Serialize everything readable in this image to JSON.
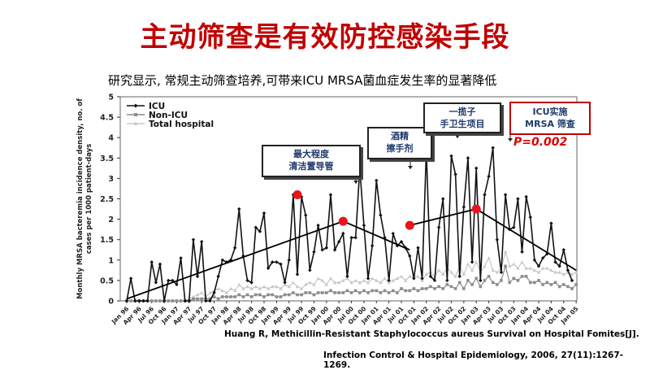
{
  "title": "主动筛查是有效防控感染手段",
  "subtitle": "研究显示, 常规主动筛查培养,可带来ICU MRSA菌血症发生率的显著降低",
  "citation_line1": "Huang R, Methicillin-Resistant Staphylococcus aureus Survival on Hospital Fomites[J].",
  "citation_line2": "Infection Control & Hospital Epidemiology, 2006, 27(11):1267-1269.",
  "callouts": {
    "c1": "最大程度\n清洁置导管",
    "c2": "酒精\n擦手剂",
    "c3": "一揽子\n手卫生项目",
    "c4": "ICU实施\nMRSA 筛查"
  },
  "p_value": "P=0.002",
  "colors": {
    "title": "#c00000",
    "icu": "#111111",
    "non_icu": "#8c8c8c",
    "total": "#c8c8c8",
    "marker": "#e8141b"
  },
  "chart_data": {
    "type": "line",
    "ylabel": "Monthly MRSA bacteremia incidence density, no. of cases per 1000 patient-days",
    "ylim": [
      0,
      5
    ],
    "yticks": [
      0,
      0.5,
      1,
      1.5,
      2,
      2.5,
      3,
      3.5,
      4,
      4.5,
      5
    ],
    "x_tick_labels": [
      "Jan 96",
      "Apr 96",
      "Jul 96",
      "Oct 96",
      "Jan 97",
      "Apr 97",
      "Jul 97",
      "Oct 97",
      "Jan 98",
      "Apr 98",
      "Jul 98",
      "Oct 98",
      "Jan 99",
      "Apr 99",
      "Jul 99",
      "Oct 99",
      "Jan 00",
      "Apr 00",
      "Jul 00",
      "Oct 00",
      "Jan 01",
      "Apr 01",
      "Jul 01",
      "Oct 01",
      "Jan 02",
      "Apr 02",
      "Jul 02",
      "Oct 02",
      "Jan 03",
      "Apr 03",
      "Jul 03",
      "Oct 03",
      "Jan 04",
      "Apr 04",
      "Jul 04",
      "Oct 04",
      "Jan 05"
    ],
    "legend": [
      "ICU",
      "Non-ICU",
      "Total hospital"
    ],
    "legend_position": "top-left",
    "series": [
      {
        "name": "ICU",
        "values": [
          0,
          0.55,
          0,
          0,
          0,
          0,
          0.95,
          0.45,
          0.9,
          0,
          0.5,
          0.5,
          0.4,
          1.05,
          0,
          0,
          1.5,
          0.6,
          1.45,
          0,
          0,
          0.2,
          0.6,
          1.0,
          0.95,
          1.0,
          1.3,
          2.25,
          1.1,
          0.5,
          0.45,
          1.8,
          1.7,
          2.15,
          0.8,
          0.95,
          0.95,
          0.9,
          0.45,
          1.0,
          2.6,
          0.65,
          2.55,
          2.1,
          0.75,
          1.2,
          1.85,
          1.25,
          1.3,
          2.6,
          1.25,
          1.45,
          1.65,
          0.6,
          1.55,
          1.55,
          3.25,
          1.85,
          0.55,
          1.35,
          2.95,
          2.1,
          1.55,
          0.5,
          1.65,
          1.35,
          1.45,
          1.3,
          1.1,
          0.55,
          1.3,
          0.55,
          3.7,
          0.6,
          0.5,
          1.8,
          2.5,
          0.5,
          3.55,
          3.1,
          0.6,
          2.3,
          3.5,
          0.95,
          3.25,
          0.5,
          2.6,
          3.05,
          3.75,
          1.5,
          0.7,
          2.6,
          1.75,
          1.8,
          2.5,
          1.2,
          2.55,
          2.05,
          1.0,
          0.85,
          1.05,
          1.15,
          1.9,
          0.95,
          0.85,
          1.25,
          0.75,
          0.5
        ]
      },
      {
        "name": "Non-ICU",
        "values": [
          0,
          0,
          0,
          0,
          0,
          0,
          0,
          0,
          0,
          0,
          0,
          0,
          0,
          0,
          0,
          0,
          0.05,
          0.05,
          0.05,
          0.05,
          0.05,
          0.1,
          0.05,
          0.1,
          0.1,
          0.1,
          0.1,
          0.15,
          0.1,
          0.15,
          0.1,
          0.15,
          0.15,
          0.1,
          0.15,
          0.15,
          0.1,
          0.1,
          0.15,
          0.15,
          0.2,
          0.15,
          0.15,
          0.2,
          0.2,
          0.15,
          0.2,
          0.2,
          0.2,
          0.25,
          0.2,
          0.2,
          0.2,
          0.25,
          0.2,
          0.25,
          0.2,
          0.25,
          0.2,
          0.25,
          0.25,
          0.2,
          0.25,
          0.2,
          0.25,
          0.2,
          0.3,
          0.25,
          0.25,
          0.3,
          0.25,
          0.3,
          0.3,
          0.35,
          0.3,
          0.35,
          0.3,
          0.4,
          0.35,
          0.3,
          0.45,
          0.3,
          0.5,
          0.4,
          0.55,
          0.35,
          0.5,
          0.6,
          0.45,
          0.4,
          0.5,
          0.85,
          0.45,
          0.55,
          0.5,
          0.6,
          0.6,
          0.45,
          0.45,
          0.5,
          0.4,
          0.45,
          0.4,
          0.45,
          0.35,
          0.4,
          0.35,
          0.3,
          0.4
        ]
      },
      {
        "name": "Total hospital",
        "values": [
          0,
          0,
          0,
          0,
          0,
          0,
          0,
          0,
          0,
          0,
          0,
          0,
          0,
          0,
          0,
          0.05,
          0.1,
          0.15,
          0.2,
          0.1,
          0.2,
          0.25,
          0.3,
          0.25,
          0.2,
          0.3,
          0.25,
          0.4,
          0.3,
          0.35,
          0.3,
          0.35,
          0.3,
          0.35,
          0.3,
          0.35,
          0.35,
          0.3,
          0.4,
          0.35,
          0.45,
          0.35,
          0.3,
          0.4,
          0.45,
          0.4,
          0.55,
          0.5,
          0.4,
          0.55,
          0.45,
          0.45,
          0.5,
          0.55,
          0.45,
          0.5,
          0.45,
          0.5,
          0.45,
          0.55,
          0.5,
          0.45,
          0.55,
          0.45,
          0.5,
          0.55,
          0.6,
          0.5,
          0.6,
          0.6,
          0.6,
          0.5,
          0.65,
          0.7,
          0.6,
          0.75,
          0.65,
          0.8,
          0.7,
          0.6,
          0.85,
          0.65,
          0.9,
          0.75,
          0.95,
          0.7,
          0.85,
          1.05,
          0.75,
          0.7,
          0.8,
          1.2,
          0.85,
          0.9,
          0.8,
          0.95,
          0.8,
          0.8,
          0.75,
          0.7,
          0.8,
          0.8,
          0.75,
          0.7,
          0.7,
          0.65,
          0.7,
          0.65,
          0.7
        ]
      }
    ],
    "trend_lines": [
      {
        "from": [
          0,
          0.05
        ],
        "to": [
          52,
          1.95
        ]
      },
      {
        "from": [
          52,
          1.95
        ],
        "to": [
          68,
          1.25
        ]
      },
      {
        "from": [
          68,
          1.85
        ],
        "to": [
          84,
          2.25
        ]
      },
      {
        "from": [
          84,
          2.25
        ],
        "to": [
          108,
          0.75
        ]
      }
    ],
    "markers": [
      {
        "x": 41,
        "y": 2.6
      },
      {
        "x": 52,
        "y": 1.95
      },
      {
        "x": 68,
        "y": 1.85
      },
      {
        "x": 84,
        "y": 2.25
      }
    ]
  }
}
